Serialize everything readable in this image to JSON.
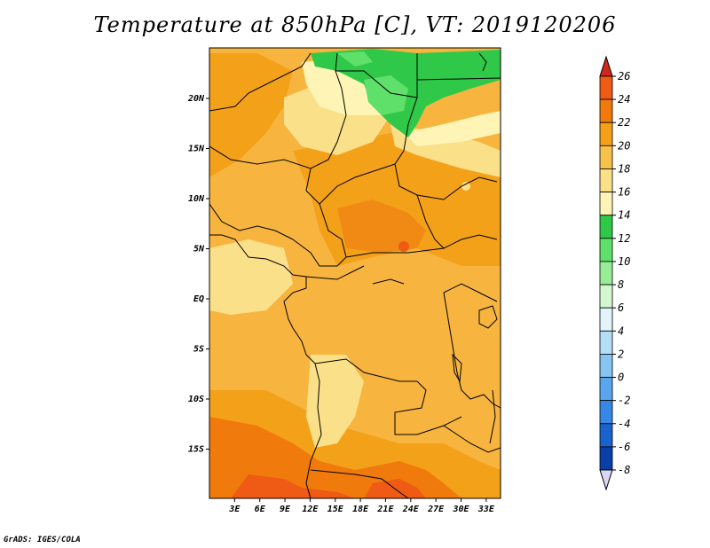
{
  "title": "Temperature at 850hPa [C], VT: 2019120206",
  "credit": "GrADS: IGES/COLA",
  "map": {
    "lat_labels": [
      {
        "label": "20N",
        "lat": 20
      },
      {
        "label": "15N",
        "lat": 15
      },
      {
        "label": "10N",
        "lat": 10
      },
      {
        "label": "5N",
        "lat": 5
      },
      {
        "label": "EQ",
        "lat": 0
      },
      {
        "label": "5S",
        "lat": -5
      },
      {
        "label": "10S",
        "lat": -10
      },
      {
        "label": "15S",
        "lat": -15
      }
    ],
    "lon_labels": [
      {
        "label": "3E",
        "lon": 3
      },
      {
        "label": "6E",
        "lon": 6
      },
      {
        "label": "9E",
        "lon": 9
      },
      {
        "label": "12E",
        "lon": 12
      },
      {
        "label": "15E",
        "lon": 15
      },
      {
        "label": "18E",
        "lon": 18
      },
      {
        "label": "21E",
        "lon": 21
      },
      {
        "label": "24E",
        "lon": 24
      },
      {
        "label": "27E",
        "lon": 27
      },
      {
        "label": "30E",
        "lon": 30
      },
      {
        "label": "33E",
        "lon": 33
      }
    ]
  },
  "colorbar": {
    "levels": [
      "26",
      "24",
      "22",
      "20",
      "18",
      "16",
      "14",
      "12",
      "10",
      "8",
      "6",
      "4",
      "2",
      "0",
      "-2",
      "-4",
      "-6",
      "-8"
    ],
    "colors": [
      "#e0341c",
      "#ef5a14",
      "#f07b0c",
      "#f4a11a",
      "#f7c24a",
      "#fbe08a",
      "#fdf4b6",
      "#30c848",
      "#5fe06b",
      "#98ec95",
      "#d4f6d0",
      "#e2f4fa",
      "#b4ddf6",
      "#86c4f2",
      "#5aa6ee",
      "#3688e4",
      "#1a62cc",
      "#0a3ea8",
      "#0b1f6e"
    ],
    "top_arrow_color": "#d0281c",
    "bottom_arrow_color": "#d8d8f4"
  }
}
